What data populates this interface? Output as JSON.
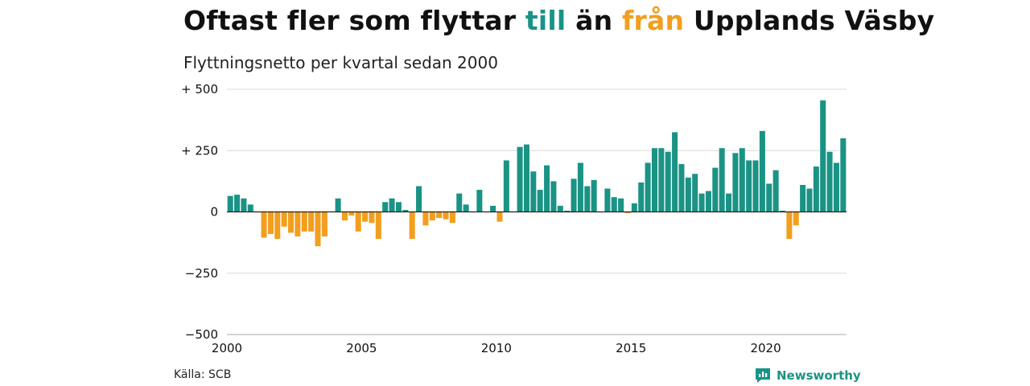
{
  "title": {
    "part1": "Oftast fler som flyttar ",
    "highlight_in": "till",
    "part2": " än ",
    "highlight_out": "från",
    "part3": " Upplands Väsby"
  },
  "subtitle": "Flyttningsnetto per kvartal sedan 2000",
  "source": "Källa: SCB",
  "brand": "Newsworthy",
  "colors": {
    "positive": "#1a9385",
    "negative": "#f29e1f",
    "grid": "#d9d9d9",
    "zero": "#222222"
  },
  "chart_data": {
    "type": "bar",
    "title": "Oftast fler som flyttar till än från Upplands Väsby",
    "subtitle": "Flyttningsnetto per kvartal sedan 2000",
    "ylim": [
      -500,
      500
    ],
    "yticks": [
      500,
      250,
      0,
      -250,
      -500
    ],
    "ytick_labels": [
      "+ 500",
      "+ 250",
      "0",
      "−250",
      "−500"
    ],
    "xticks": [
      2000,
      2005,
      2010,
      2015,
      2020
    ],
    "x_start": "2000 Q1",
    "values": [
      65,
      70,
      55,
      30,
      0,
      -105,
      -90,
      -110,
      -60,
      -85,
      -100,
      -80,
      -80,
      -140,
      -100,
      0,
      55,
      -35,
      -15,
      -80,
      -40,
      -45,
      -110,
      40,
      55,
      40,
      8,
      -110,
      105,
      -55,
      -35,
      -25,
      -30,
      -45,
      75,
      30,
      0,
      90,
      0,
      25,
      -40,
      210,
      0,
      265,
      275,
      165,
      90,
      190,
      125,
      25,
      5,
      135,
      200,
      105,
      130,
      0,
      95,
      60,
      55,
      -5,
      35,
      120,
      200,
      260,
      260,
      245,
      325,
      195,
      140,
      155,
      75,
      85,
      180,
      260,
      75,
      240,
      260,
      210,
      210,
      330,
      115,
      170,
      5,
      -110,
      -55,
      110,
      95,
      185,
      455,
      245,
      200,
      300
    ]
  }
}
